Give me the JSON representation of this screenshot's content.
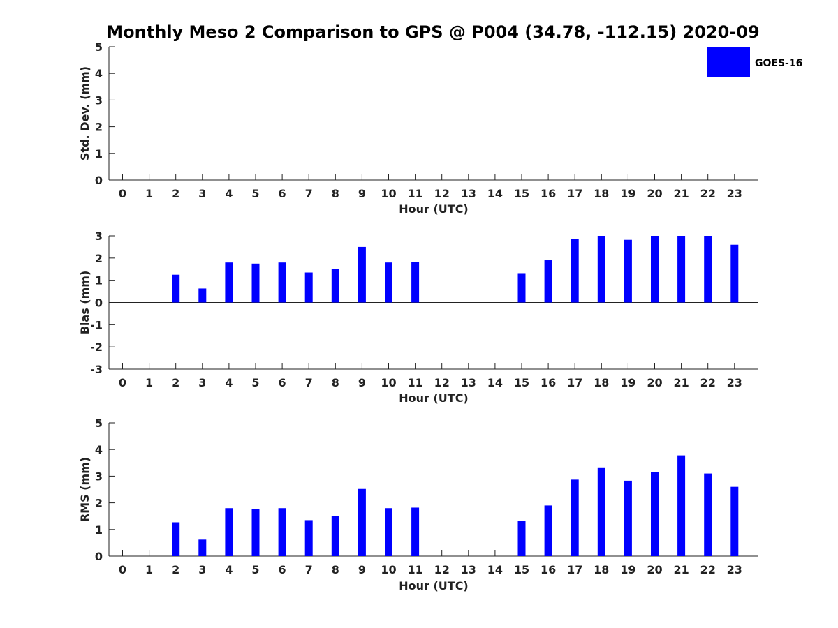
{
  "chart_data": {
    "type": "bar",
    "title": "Monthly Meso 2 Comparison to GPS @ P004 (34.78, -112.15) 2020-09",
    "legend": {
      "label": "GOES-16",
      "color": "#0000ff",
      "placement": "top-right"
    },
    "hours": [
      0,
      1,
      2,
      3,
      4,
      5,
      6,
      7,
      8,
      9,
      10,
      11,
      12,
      13,
      14,
      15,
      16,
      17,
      18,
      19,
      20,
      21,
      22,
      23
    ],
    "panels": [
      {
        "key": "std",
        "ylabel": "Std. Dev. (mm)",
        "xlabel": "Hour (UTC)",
        "ylim": [
          0,
          5
        ],
        "yticks": [
          0,
          1,
          2,
          3,
          4,
          5
        ],
        "values": [
          null,
          null,
          null,
          null,
          null,
          null,
          null,
          null,
          null,
          null,
          null,
          null,
          null,
          null,
          null,
          null,
          null,
          null,
          null,
          null,
          null,
          null,
          null,
          null
        ]
      },
      {
        "key": "bias",
        "ylabel": "Bias (mm)",
        "xlabel": "Hour (UTC)",
        "ylim": [
          -3,
          3
        ],
        "yticks": [
          -3,
          -2,
          -1,
          0,
          1,
          2,
          3
        ],
        "zero_line": true,
        "values": [
          null,
          null,
          1.25,
          0.63,
          1.8,
          1.75,
          1.8,
          1.35,
          1.5,
          2.5,
          1.8,
          1.82,
          null,
          null,
          null,
          1.32,
          1.9,
          2.85,
          3.0,
          2.82,
          3.0,
          3.0,
          3.0,
          2.6
        ]
      },
      {
        "key": "rms",
        "ylabel": "RMS (mm)",
        "xlabel": "Hour (UTC)",
        "ylim": [
          0,
          5
        ],
        "yticks": [
          0,
          1,
          2,
          3,
          4,
          5
        ],
        "values": [
          null,
          null,
          1.27,
          0.62,
          1.8,
          1.76,
          1.8,
          1.35,
          1.5,
          2.52,
          1.8,
          1.82,
          null,
          null,
          null,
          1.33,
          1.9,
          2.87,
          3.33,
          2.83,
          3.15,
          3.78,
          3.1,
          2.6
        ]
      }
    ]
  }
}
